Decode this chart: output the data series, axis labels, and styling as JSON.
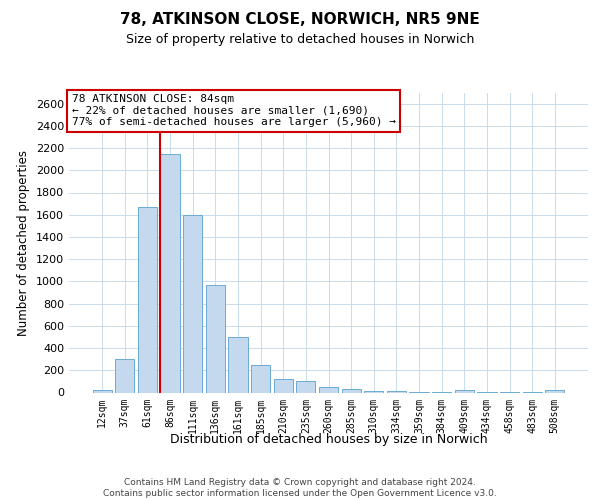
{
  "title1": "78, ATKINSON CLOSE, NORWICH, NR5 9NE",
  "title2": "Size of property relative to detached houses in Norwich",
  "xlabel": "Distribution of detached houses by size in Norwich",
  "ylabel": "Number of detached properties",
  "bar_color": "#c5d9ee",
  "bar_edge_color": "#6aaad4",
  "grid_color": "#c8dced",
  "background_color": "#ffffff",
  "vline_color": "#cc0000",
  "vline_bar_index": 3,
  "annotation_text": "78 ATKINSON CLOSE: 84sqm\n← 22% of detached houses are smaller (1,690)\n77% of semi-detached houses are larger (5,960) →",
  "categories": [
    "12sqm",
    "37sqm",
    "61sqm",
    "86sqm",
    "111sqm",
    "136sqm",
    "161sqm",
    "185sqm",
    "210sqm",
    "235sqm",
    "260sqm",
    "285sqm",
    "310sqm",
    "334sqm",
    "359sqm",
    "384sqm",
    "409sqm",
    "434sqm",
    "458sqm",
    "483sqm",
    "508sqm"
  ],
  "values": [
    20,
    300,
    1670,
    2150,
    1600,
    970,
    500,
    248,
    125,
    100,
    50,
    30,
    15,
    10,
    8,
    5,
    20,
    5,
    5,
    5,
    20
  ],
  "ylim": [
    0,
    2700
  ],
  "yticks": [
    0,
    200,
    400,
    600,
    800,
    1000,
    1200,
    1400,
    1600,
    1800,
    2000,
    2200,
    2400,
    2600
  ],
  "title1_fontsize": 11,
  "title2_fontsize": 9,
  "ylabel_fontsize": 8.5,
  "xlabel_fontsize": 9,
  "tick_fontsize": 8,
  "xtick_fontsize": 7,
  "annot_fontsize": 8,
  "footer1": "Contains HM Land Registry data © Crown copyright and database right 2024.",
  "footer2": "Contains public sector information licensed under the Open Government Licence v3.0."
}
